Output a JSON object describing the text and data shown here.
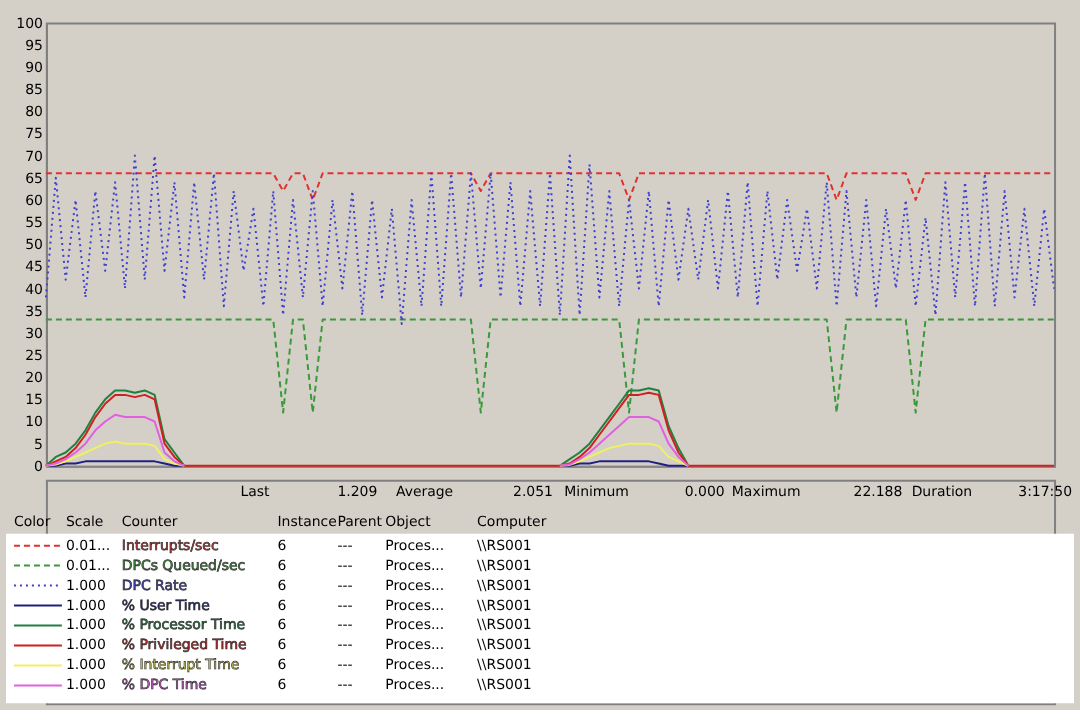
{
  "chart_data": {
    "type": "line",
    "categories": [
      null,
      null,
      null,
      null,
      null,
      null,
      null,
      null,
      null,
      null,
      null,
      null,
      null,
      null,
      null,
      null,
      null,
      null,
      null,
      null,
      null,
      null,
      null,
      null,
      null,
      null,
      null,
      null,
      null,
      null,
      null,
      null,
      null,
      null,
      null,
      null,
      null,
      null,
      null,
      null,
      null,
      null,
      null,
      null,
      null,
      null,
      null,
      null,
      null,
      null,
      null,
      null,
      null,
      null,
      null,
      null,
      null,
      null,
      null,
      null,
      null,
      null,
      null,
      null,
      null,
      null,
      null,
      null,
      null,
      null,
      null,
      null,
      null,
      null,
      null,
      null,
      null,
      null,
      null,
      null,
      null,
      null,
      null,
      null,
      null,
      null,
      null,
      null,
      null,
      null,
      null,
      null,
      null,
      null,
      null,
      null,
      null,
      null,
      null,
      null,
      null,
      null,
      null
    ],
    "ylim": [
      0,
      100
    ],
    "yticks": [
      0,
      5,
      10,
      15,
      20,
      25,
      30,
      35,
      40,
      45,
      50,
      55,
      60,
      65,
      70,
      75,
      80,
      85,
      90,
      95,
      100
    ],
    "grid": false,
    "legend": "bottom",
    "tick_labels": "y",
    "series": [
      {
        "name": "Interrupts/sec",
        "color": "#e03030",
        "line_style": "dashed",
        "values": [
          66,
          66,
          66,
          66,
          66,
          66,
          66,
          66,
          66,
          66,
          66,
          66,
          66,
          66,
          66,
          66,
          66,
          66,
          66,
          66,
          66,
          66,
          66,
          66,
          62,
          66,
          66,
          60,
          66,
          66,
          66,
          66,
          66,
          66,
          66,
          66,
          66,
          66,
          66,
          66,
          66,
          66,
          66,
          66,
          62,
          66,
          66,
          66,
          66,
          66,
          66,
          66,
          66,
          66,
          66,
          66,
          66,
          66,
          66,
          60,
          66,
          66,
          66,
          66,
          66,
          66,
          66,
          66,
          66,
          66,
          66,
          66,
          66,
          66,
          66,
          66,
          66,
          66,
          66,
          66,
          60,
          66,
          66,
          66,
          66,
          66,
          66,
          66,
          60,
          66,
          66,
          66,
          66,
          66,
          66,
          66,
          66,
          66,
          66,
          66,
          66,
          66,
          66
        ]
      },
      {
        "name": "DPCs Queued/sec",
        "color": "#3a9a3a",
        "line_style": "dashed",
        "values": [
          33,
          33,
          33,
          33,
          33,
          33,
          33,
          33,
          33,
          33,
          33,
          33,
          33,
          33,
          33,
          33,
          33,
          33,
          33,
          33,
          33,
          33,
          33,
          33,
          12,
          33,
          33,
          12,
          33,
          33,
          33,
          33,
          33,
          33,
          33,
          33,
          33,
          33,
          33,
          33,
          33,
          33,
          33,
          33,
          12,
          33,
          33,
          33,
          33,
          33,
          33,
          33,
          33,
          33,
          33,
          33,
          33,
          33,
          33,
          12,
          33,
          33,
          33,
          33,
          33,
          33,
          33,
          33,
          33,
          33,
          33,
          33,
          33,
          33,
          33,
          33,
          33,
          33,
          33,
          33,
          12,
          33,
          33,
          33,
          33,
          33,
          33,
          33,
          12,
          33,
          33,
          33,
          33,
          33,
          33,
          33,
          33,
          33,
          33,
          33,
          33,
          33,
          33
        ]
      },
      {
        "name": "DPC Rate",
        "color": "#4040d0",
        "line_style": "dotted",
        "values": [
          38,
          65,
          42,
          60,
          38,
          62,
          44,
          64,
          40,
          70,
          42,
          70,
          44,
          64,
          38,
          64,
          42,
          66,
          36,
          62,
          44,
          58,
          36,
          62,
          34,
          60,
          38,
          62,
          36,
          60,
          40,
          62,
          34,
          60,
          38,
          58,
          32,
          60,
          36,
          66,
          36,
          66,
          38,
          66,
          40,
          66,
          38,
          64,
          36,
          62,
          36,
          66,
          34,
          70,
          34,
          68,
          38,
          62,
          36,
          60,
          40,
          62,
          36,
          60,
          42,
          58,
          42,
          60,
          40,
          62,
          38,
          64,
          36,
          62,
          42,
          60,
          44,
          58,
          40,
          64,
          36,
          62,
          38,
          60,
          36,
          58,
          40,
          60,
          36,
          56,
          34,
          64,
          38,
          64,
          36,
          66,
          36,
          62,
          38,
          58,
          36,
          58,
          40
        ]
      },
      {
        "name": "% User Time",
        "color": "#202080",
        "line_style": "solid",
        "values": [
          0,
          0,
          0.5,
          0.5,
          1,
          1,
          1,
          1,
          1,
          1,
          1,
          1,
          0.5,
          0,
          0,
          null,
          null,
          null,
          null,
          null,
          null,
          null,
          null,
          null,
          null,
          null,
          null,
          null,
          null,
          null,
          null,
          null,
          null,
          null,
          null,
          null,
          null,
          null,
          null,
          null,
          null,
          null,
          null,
          null,
          null,
          null,
          null,
          null,
          null,
          null,
          null,
          null,
          0,
          0,
          0.5,
          0.5,
          1,
          1,
          1,
          1,
          1,
          1,
          0.5,
          0,
          0,
          0,
          null,
          null,
          null,
          null,
          null,
          null,
          null,
          null,
          null,
          null,
          null,
          null,
          null,
          null,
          null,
          null,
          null,
          null,
          null,
          null,
          null,
          null,
          null,
          null,
          null,
          null,
          null,
          null,
          null,
          null,
          null,
          null,
          null,
          null,
          null,
          null,
          null
        ]
      },
      {
        "name": "% Processor Time",
        "color": "#208040",
        "line_style": "solid",
        "values": [
          0,
          2,
          3,
          5,
          8,
          12,
          15,
          17,
          17,
          16.5,
          17,
          16,
          6,
          3,
          0,
          null,
          null,
          null,
          null,
          null,
          null,
          null,
          null,
          null,
          null,
          null,
          null,
          null,
          null,
          null,
          null,
          null,
          null,
          null,
          null,
          null,
          null,
          null,
          null,
          null,
          null,
          null,
          null,
          null,
          null,
          null,
          null,
          null,
          null,
          null,
          null,
          null,
          0,
          1.5,
          3,
          5,
          8,
          11,
          14,
          17,
          17,
          17.5,
          17,
          9,
          4,
          0,
          null,
          null,
          null,
          null,
          null,
          null,
          null,
          null,
          null,
          null,
          null,
          null,
          null,
          null,
          null,
          null,
          null,
          null,
          null,
          null,
          null,
          null,
          null,
          null,
          null,
          null,
          null,
          null,
          null,
          null,
          null,
          null,
          null,
          null,
          null,
          null,
          null
        ]
      },
      {
        "name": "% Privileged Time",
        "color": "#d02020",
        "line_style": "solid",
        "values": [
          0,
          1,
          2,
          4,
          7,
          11,
          14,
          16,
          16,
          15.5,
          16,
          15,
          5,
          2,
          0,
          0,
          0,
          0,
          0,
          0,
          0,
          0,
          0,
          0,
          0,
          0,
          0,
          0,
          0,
          0,
          0,
          0,
          0,
          0,
          0,
          0,
          0,
          0,
          0,
          0,
          0,
          0,
          0,
          0,
          0,
          0,
          0,
          0,
          0,
          0,
          0,
          0,
          0,
          0.5,
          2,
          4,
          7,
          10,
          13,
          16,
          16,
          16.5,
          16,
          8,
          3,
          0,
          0,
          0,
          0,
          0,
          0,
          0,
          0,
          0,
          0,
          0,
          0,
          0,
          0,
          0,
          0,
          0,
          0,
          0,
          0,
          0,
          0,
          0,
          0,
          0,
          0,
          0,
          0,
          0,
          0,
          0,
          0,
          0,
          0,
          0,
          0,
          0,
          0
        ]
      },
      {
        "name": "% Interrupt Time",
        "color": "#f0f060",
        "line_style": "solid",
        "values": [
          0,
          0.3,
          1,
          2,
          3,
          4,
          5,
          5.5,
          5,
          5,
          5,
          4.5,
          1.5,
          0.5,
          0,
          null,
          null,
          null,
          null,
          null,
          null,
          null,
          null,
          null,
          null,
          null,
          null,
          null,
          null,
          null,
          null,
          null,
          null,
          null,
          null,
          null,
          null,
          null,
          null,
          null,
          null,
          null,
          null,
          null,
          null,
          null,
          null,
          null,
          null,
          null,
          null,
          null,
          0,
          0.2,
          1,
          2,
          3,
          4,
          4.5,
          5,
          5,
          5,
          4.5,
          2,
          1,
          0,
          null,
          null,
          null,
          null,
          null,
          null,
          null,
          null,
          null,
          null,
          null,
          null,
          null,
          null,
          null,
          null,
          null,
          null,
          null,
          null,
          null,
          null,
          null,
          null,
          null,
          null,
          null,
          null,
          null,
          null,
          null,
          null,
          null,
          null,
          null,
          null,
          null
        ]
      },
      {
        "name": "% DPC Time",
        "color": "#e060e0",
        "line_style": "solid",
        "values": [
          0,
          0.5,
          1.5,
          3,
          5,
          8,
          10,
          11.5,
          11,
          11,
          11,
          10,
          3,
          1,
          0,
          null,
          null,
          null,
          null,
          null,
          null,
          null,
          null,
          null,
          null,
          null,
          null,
          null,
          null,
          null,
          null,
          null,
          null,
          null,
          null,
          null,
          null,
          null,
          null,
          null,
          null,
          null,
          null,
          null,
          null,
          null,
          null,
          null,
          null,
          null,
          null,
          null,
          0,
          0.3,
          1.5,
          3,
          5,
          7,
          9,
          11,
          11,
          11,
          10,
          5,
          2,
          0,
          null,
          null,
          null,
          null,
          null,
          null,
          null,
          null,
          null,
          null,
          null,
          null,
          null,
          null,
          null,
          null,
          null,
          null,
          null,
          null,
          null,
          null,
          null,
          null,
          null,
          null,
          null,
          null,
          null,
          null,
          null,
          null,
          null,
          null,
          null,
          null,
          null
        ]
      }
    ],
    "annotations": [
      "Last",
      "1.209",
      "Average",
      "2.051",
      "Minimum",
      "0.000",
      "Maximum",
      "22.188",
      "Duration",
      "3:17:50",
      "Color",
      "Scale",
      "Counter",
      "Instance",
      "Parent",
      "Object",
      "Computer",
      "0.01...",
      "6",
      "---",
      "Proces...",
      "\\\\RS001",
      "0.01...",
      "6",
      "---",
      "Proces...",
      "\\\\RS001",
      "1.000",
      "6",
      "---",
      "Proces...",
      "\\\\RS001",
      "1.000",
      "6",
      "---",
      "Proces...",
      "\\\\RS001",
      "1.000",
      "6",
      "---",
      "Proces...",
      "\\\\RS001",
      "1.000",
      "6",
      "---",
      "Proces...",
      "\\\\RS001",
      "1.000",
      "6",
      "---",
      "Proces...",
      "\\\\RS001",
      "1.000",
      "6",
      "---",
      "Proces...",
      "\\\\RS001"
    ]
  }
}
